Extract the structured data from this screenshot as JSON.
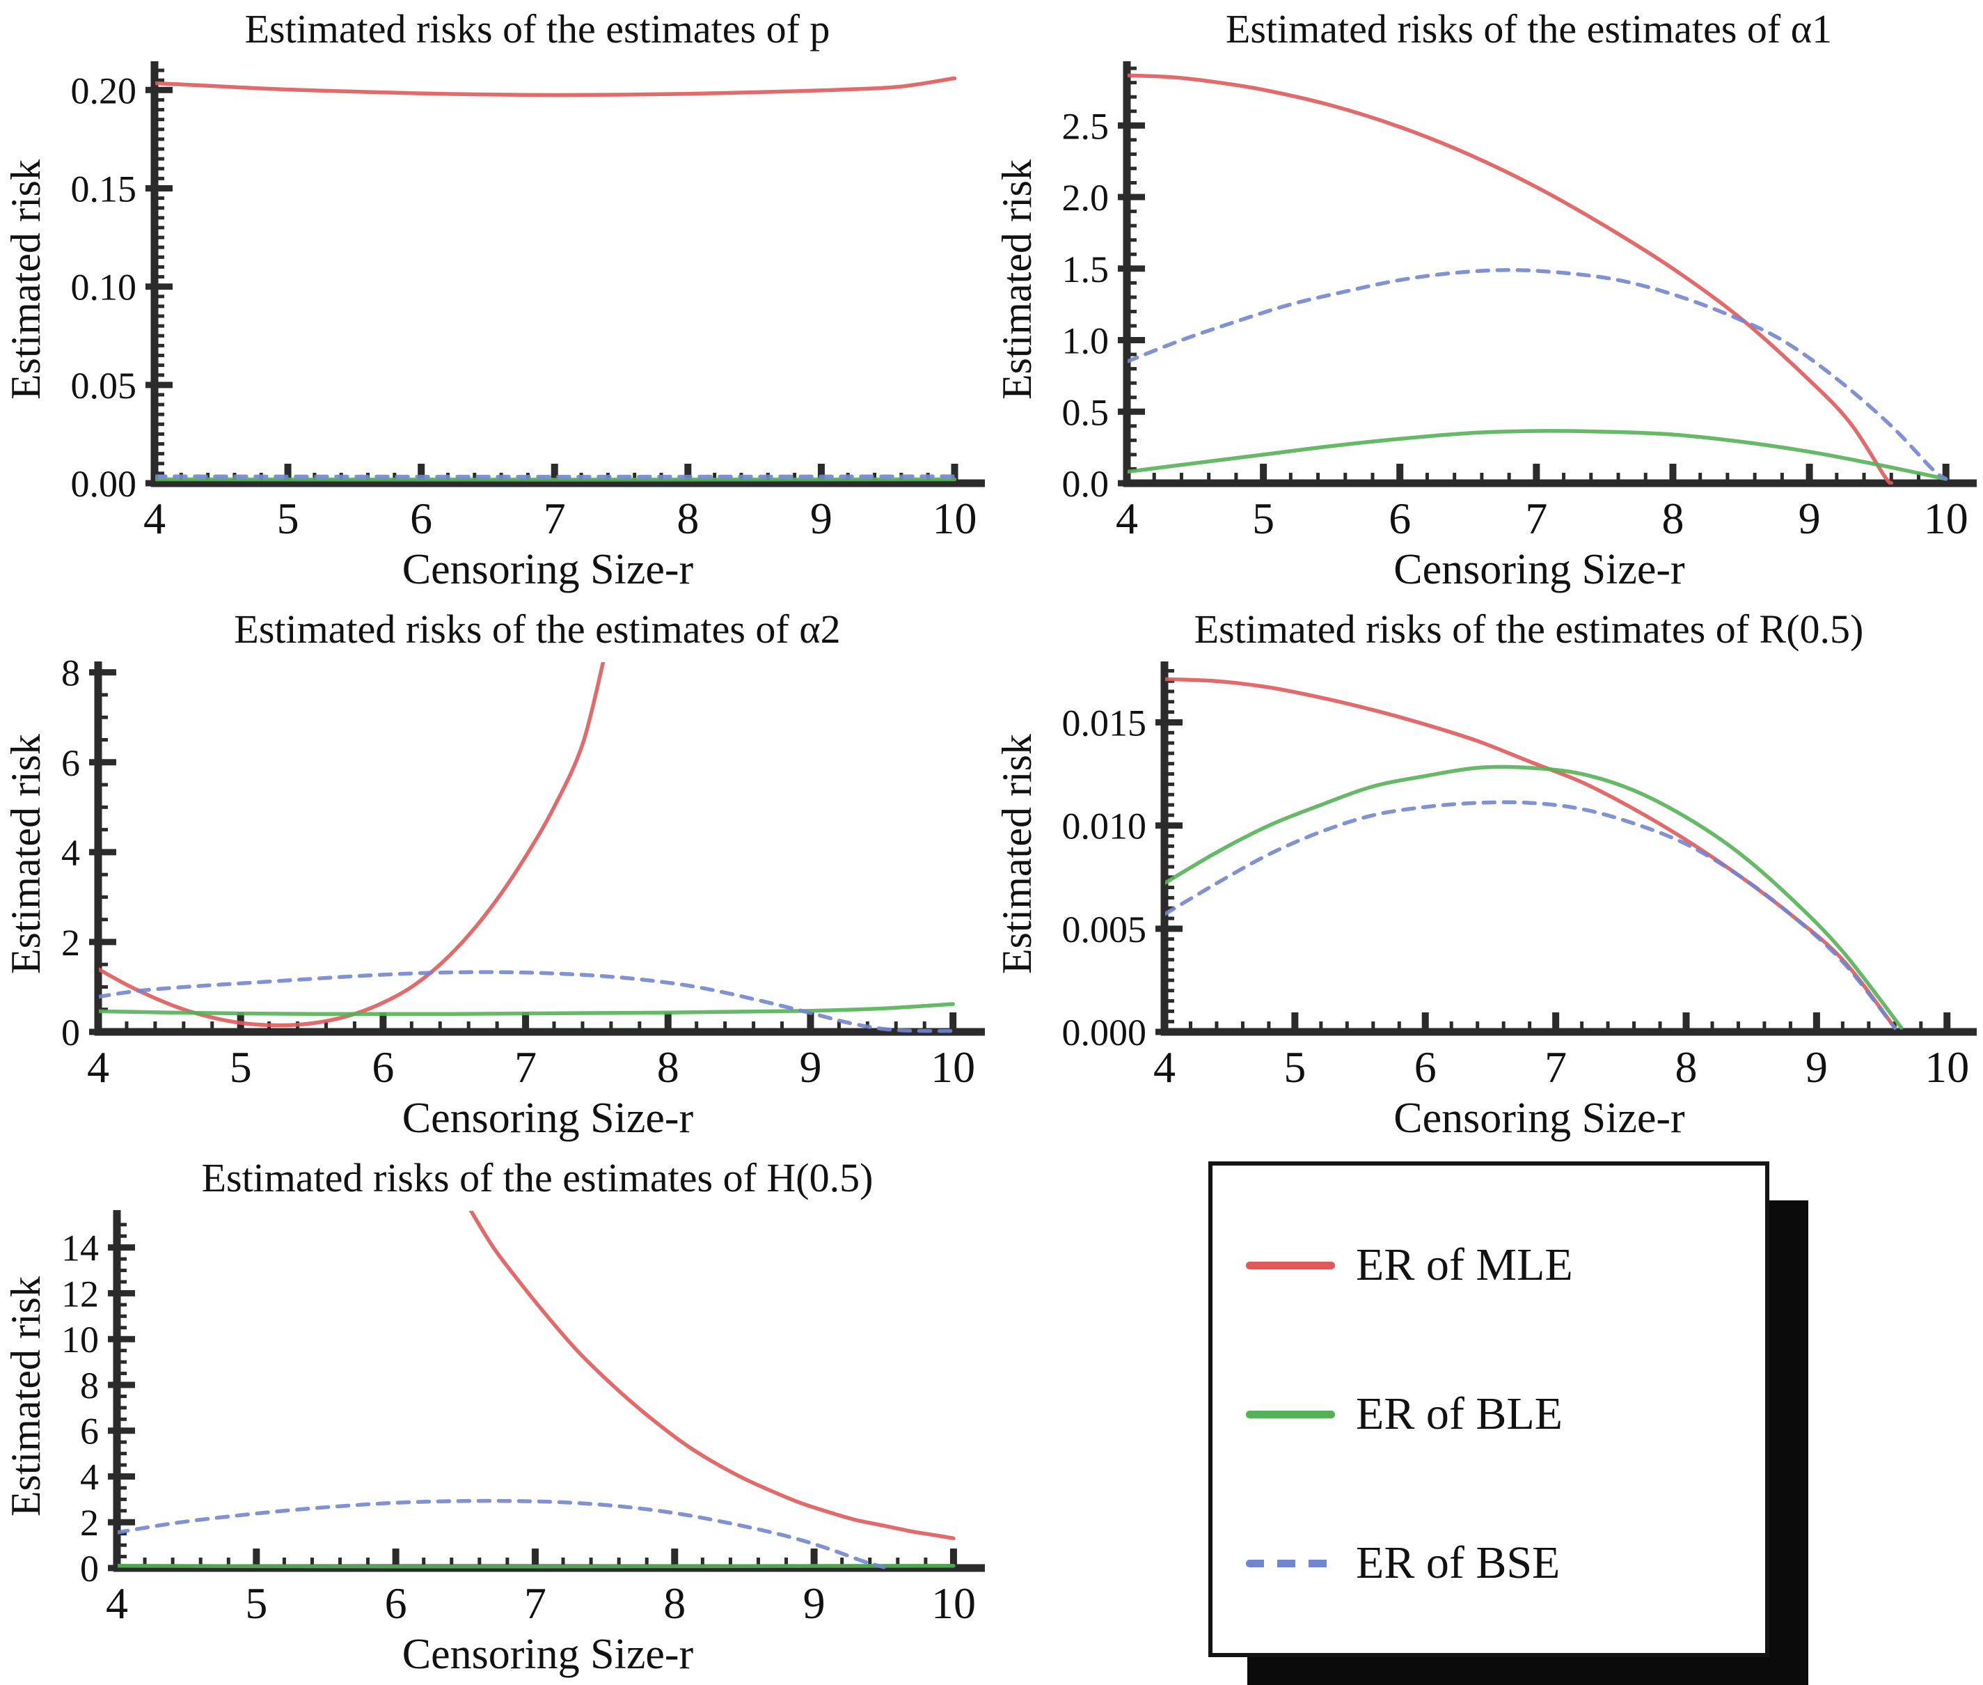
{
  "figure": {
    "background": "#ffffff"
  },
  "colors": {
    "mle": "#e05a5a",
    "ble": "#55b155",
    "bse": "#7285cf",
    "axis": "#2b2b2b",
    "text": "#111111",
    "legend_border": "#141414",
    "legend_shadow": "#0b0b0b"
  },
  "legend": {
    "items": [
      {
        "label": "ER of MLE",
        "series": "mle",
        "style": "solid"
      },
      {
        "label": "ER of BLE",
        "series": "ble",
        "style": "solid"
      },
      {
        "label": "ER of BSE",
        "series": "bse",
        "style": "dashed"
      }
    ]
  },
  "chart_data": [
    {
      "type": "line",
      "title": "Estimated risks of the estimates of p",
      "xlabel": "Censoring Size-r",
      "ylabel": "Estimated risk",
      "xlim": [
        4,
        10.18
      ],
      "ylim": [
        0,
        0.2125
      ],
      "xticks": [
        4,
        5,
        6,
        7,
        8,
        9,
        10
      ],
      "xminor": 0.2,
      "yticks": [
        0,
        0.05,
        0.1,
        0.15,
        0.2
      ],
      "ytick_labels": [
        "0.00",
        "0.05",
        "0.10",
        "0.15",
        "0.20"
      ],
      "yminor": 0.005,
      "series": [
        {
          "name": "ER of MLE",
          "color": "mle",
          "style": "solid",
          "points": [
            [
              4,
              0.2035
            ],
            [
              4.4,
              0.2022
            ],
            [
              4.8,
              0.2008
            ],
            [
              5.2,
              0.1998
            ],
            [
              5.6,
              0.199
            ],
            [
              6,
              0.1983
            ],
            [
              6.4,
              0.1978
            ],
            [
              6.8,
              0.1975
            ],
            [
              7.2,
              0.1975
            ],
            [
              7.6,
              0.1977
            ],
            [
              8,
              0.1981
            ],
            [
              8.4,
              0.1987
            ],
            [
              8.8,
              0.1994
            ],
            [
              9.2,
              0.2003
            ],
            [
              9.6,
              0.2018
            ],
            [
              10,
              0.206
            ]
          ]
        },
        {
          "name": "ER of BLE",
          "color": "ble",
          "style": "solid",
          "points": [
            [
              4,
              0.002
            ],
            [
              7,
              0.0018
            ],
            [
              10,
              0.002
            ]
          ]
        },
        {
          "name": "ER of BSE",
          "color": "bse",
          "style": "dashed",
          "points": [
            [
              4,
              0.0035
            ],
            [
              7,
              0.0033
            ],
            [
              10,
              0.0035
            ]
          ]
        }
      ]
    },
    {
      "type": "line",
      "title": "Estimated risks of the estimates of α1",
      "xlabel": "Censoring Size-r",
      "ylabel": "Estimated risk",
      "xlim": [
        4,
        10.18
      ],
      "ylim": [
        0,
        2.92
      ],
      "xticks": [
        4,
        5,
        6,
        7,
        8,
        9,
        10
      ],
      "xminor": 0.2,
      "yticks": [
        0,
        0.5,
        1.0,
        1.5,
        2.0,
        2.5
      ],
      "ytick_labels": [
        "0.0",
        "0.5",
        "1.0",
        "1.5",
        "2.0",
        "2.5"
      ],
      "yminor": 0.1,
      "series": [
        {
          "name": "ER of MLE",
          "color": "mle",
          "style": "solid",
          "points": [
            [
              4,
              2.85
            ],
            [
              4.3,
              2.84
            ],
            [
              4.6,
              2.81
            ],
            [
              5,
              2.75
            ],
            [
              5.5,
              2.64
            ],
            [
              6,
              2.49
            ],
            [
              6.5,
              2.3
            ],
            [
              7,
              2.07
            ],
            [
              7.5,
              1.8
            ],
            [
              8,
              1.5
            ],
            [
              8.5,
              1.15
            ],
            [
              9,
              0.72
            ],
            [
              9.3,
              0.42
            ],
            [
              9.55,
              0.05
            ],
            [
              9.6,
              0
            ]
          ]
        },
        {
          "name": "ER of BLE",
          "color": "ble",
          "style": "solid",
          "points": [
            [
              4,
              0.08
            ],
            [
              4.5,
              0.14
            ],
            [
              5,
              0.2
            ],
            [
              5.5,
              0.26
            ],
            [
              6,
              0.31
            ],
            [
              6.5,
              0.35
            ],
            [
              7,
              0.365
            ],
            [
              7.5,
              0.36
            ],
            [
              8,
              0.34
            ],
            [
              8.5,
              0.29
            ],
            [
              9,
              0.22
            ],
            [
              9.5,
              0.13
            ],
            [
              10,
              0.03
            ]
          ]
        },
        {
          "name": "ER of BSE",
          "color": "bse",
          "style": "dashed",
          "points": [
            [
              4,
              0.85
            ],
            [
              4.4,
              1.0
            ],
            [
              4.8,
              1.13
            ],
            [
              5.2,
              1.25
            ],
            [
              5.6,
              1.34
            ],
            [
              6,
              1.42
            ],
            [
              6.4,
              1.47
            ],
            [
              6.8,
              1.49
            ],
            [
              7.2,
              1.47
            ],
            [
              7.6,
              1.42
            ],
            [
              8,
              1.32
            ],
            [
              8.4,
              1.18
            ],
            [
              8.8,
              1.0
            ],
            [
              9.2,
              0.73
            ],
            [
              9.6,
              0.4
            ],
            [
              9.9,
              0.1
            ],
            [
              10,
              0.03
            ]
          ]
        }
      ]
    },
    {
      "type": "line",
      "title": "Estimated risks of the estimates of α2",
      "xlabel": "Censoring Size-r",
      "ylabel": "Estimated risk",
      "xlim": [
        4,
        10.18
      ],
      "ylim": [
        0,
        8.15
      ],
      "xticks": [
        4,
        5,
        6,
        7,
        8,
        9,
        10
      ],
      "xminor": 0.2,
      "yticks": [
        0,
        2,
        4,
        6,
        8
      ],
      "ytick_labels": [
        "0",
        "2",
        "4",
        "6",
        "8"
      ],
      "yminor": 0.5,
      "series": [
        {
          "name": "ER of MLE",
          "color": "mle",
          "style": "solid",
          "points": [
            [
              4,
              1.4
            ],
            [
              4.2,
              1.05
            ],
            [
              4.4,
              0.75
            ],
            [
              4.6,
              0.5
            ],
            [
              4.8,
              0.32
            ],
            [
              5,
              0.2
            ],
            [
              5.2,
              0.15
            ],
            [
              5.4,
              0.16
            ],
            [
              5.6,
              0.24
            ],
            [
              5.8,
              0.4
            ],
            [
              6,
              0.65
            ],
            [
              6.2,
              1.0
            ],
            [
              6.4,
              1.5
            ],
            [
              6.6,
              2.15
            ],
            [
              6.8,
              2.95
            ],
            [
              7,
              3.9
            ],
            [
              7.2,
              5.0
            ],
            [
              7.4,
              6.4
            ],
            [
              7.55,
              8.3
            ]
          ]
        },
        {
          "name": "ER of BLE",
          "color": "ble",
          "style": "solid",
          "points": [
            [
              4,
              0.46
            ],
            [
              4.5,
              0.43
            ],
            [
              5,
              0.41
            ],
            [
              5.5,
              0.4
            ],
            [
              6,
              0.4
            ],
            [
              6.5,
              0.4
            ],
            [
              7,
              0.41
            ],
            [
              7.5,
              0.42
            ],
            [
              8,
              0.43
            ],
            [
              8.5,
              0.45
            ],
            [
              9,
              0.47
            ],
            [
              9.5,
              0.52
            ],
            [
              10,
              0.62
            ]
          ]
        },
        {
          "name": "ER of BSE",
          "color": "bse",
          "style": "dashed",
          "points": [
            [
              4,
              0.78
            ],
            [
              4.2,
              0.88
            ],
            [
              4.4,
              0.95
            ],
            [
              4.7,
              1.02
            ],
            [
              5,
              1.08
            ],
            [
              5.4,
              1.16
            ],
            [
              5.8,
              1.24
            ],
            [
              6.2,
              1.3
            ],
            [
              6.6,
              1.33
            ],
            [
              7,
              1.32
            ],
            [
              7.4,
              1.27
            ],
            [
              7.8,
              1.17
            ],
            [
              8.2,
              1.0
            ],
            [
              8.6,
              0.73
            ],
            [
              9,
              0.42
            ],
            [
              9.3,
              0.18
            ],
            [
              9.6,
              0.04
            ],
            [
              10,
              0.02
            ]
          ]
        }
      ]
    },
    {
      "type": "line",
      "title": "Estimated risks of the estimates of R(0.5)",
      "xlabel": "Censoring Size-r",
      "ylabel": "Estimated risk",
      "xlim": [
        4,
        10.18
      ],
      "ylim": [
        0,
        0.01775
      ],
      "xticks": [
        4,
        5,
        6,
        7,
        8,
        9,
        10
      ],
      "xminor": 0.2,
      "yticks": [
        0,
        0.005,
        0.01,
        0.015
      ],
      "ytick_labels": [
        "0.000",
        "0.005",
        "0.010",
        "0.015"
      ],
      "yminor": 0.0005,
      "series": [
        {
          "name": "ER of MLE",
          "color": "mle",
          "style": "solid",
          "points": [
            [
              4,
              0.0171
            ],
            [
              4.4,
              0.017
            ],
            [
              4.8,
              0.0167
            ],
            [
              5.2,
              0.0162
            ],
            [
              5.6,
              0.0156
            ],
            [
              6,
              0.0149
            ],
            [
              6.4,
              0.0141
            ],
            [
              6.8,
              0.0131
            ],
            [
              7.2,
              0.0121
            ],
            [
              7.6,
              0.0108
            ],
            [
              8,
              0.0093
            ],
            [
              8.4,
              0.0076
            ],
            [
              8.8,
              0.0057
            ],
            [
              9.2,
              0.0035
            ],
            [
              9.6,
              0.0002
            ]
          ]
        },
        {
          "name": "ER of BLE",
          "color": "ble",
          "style": "solid",
          "points": [
            [
              4,
              0.0072
            ],
            [
              4.4,
              0.0087
            ],
            [
              4.8,
              0.01
            ],
            [
              5.2,
              0.011
            ],
            [
              5.6,
              0.0119
            ],
            [
              6,
              0.0124
            ],
            [
              6.4,
              0.0128
            ],
            [
              6.8,
              0.0128
            ],
            [
              7.2,
              0.0125
            ],
            [
              7.6,
              0.0117
            ],
            [
              8,
              0.0104
            ],
            [
              8.4,
              0.0087
            ],
            [
              8.8,
              0.0065
            ],
            [
              9.2,
              0.0039
            ],
            [
              9.65,
              0.0002
            ]
          ]
        },
        {
          "name": "ER of BSE",
          "color": "bse",
          "style": "dashed",
          "points": [
            [
              4,
              0.0057
            ],
            [
              4.4,
              0.0072
            ],
            [
              4.8,
              0.0086
            ],
            [
              5.2,
              0.0097
            ],
            [
              5.6,
              0.0105
            ],
            [
              6,
              0.0109
            ],
            [
              6.4,
              0.0111
            ],
            [
              6.8,
              0.0111
            ],
            [
              7.2,
              0.0108
            ],
            [
              7.6,
              0.0101
            ],
            [
              8,
              0.0091
            ],
            [
              8.4,
              0.0076
            ],
            [
              8.8,
              0.0057
            ],
            [
              9.2,
              0.0034
            ],
            [
              9.6,
              0.0002
            ]
          ]
        }
      ]
    },
    {
      "type": "line",
      "title": "Estimated risks of the estimates of H(0.5)",
      "xlabel": "Censoring Size-r",
      "ylabel": "Estimated risk",
      "xlim": [
        4,
        10.18
      ],
      "ylim": [
        0,
        15.45
      ],
      "xticks": [
        4,
        5,
        6,
        7,
        8,
        9,
        10
      ],
      "xminor": 0.2,
      "yticks": [
        0,
        2,
        4,
        6,
        8,
        10,
        12,
        14
      ],
      "ytick_labels": [
        "0",
        "2",
        "4",
        "6",
        "8",
        "10",
        "12",
        "14"
      ],
      "yminor": 0.5,
      "series": [
        {
          "name": "ER of MLE",
          "color": "mle",
          "style": "solid",
          "points": [
            [
              6.52,
              15.8
            ],
            [
              6.7,
              14.0
            ],
            [
              6.9,
              12.4
            ],
            [
              7.1,
              10.9
            ],
            [
              7.3,
              9.5
            ],
            [
              7.5,
              8.3
            ],
            [
              7.7,
              7.2
            ],
            [
              7.9,
              6.2
            ],
            [
              8.1,
              5.3
            ],
            [
              8.3,
              4.55
            ],
            [
              8.5,
              3.9
            ],
            [
              8.7,
              3.35
            ],
            [
              8.9,
              2.85
            ],
            [
              9.1,
              2.45
            ],
            [
              9.3,
              2.1
            ],
            [
              9.5,
              1.85
            ],
            [
              9.7,
              1.6
            ],
            [
              9.85,
              1.45
            ],
            [
              10,
              1.3
            ]
          ]
        },
        {
          "name": "ER of BLE",
          "color": "ble",
          "style": "solid",
          "points": [
            [
              4,
              0.1
            ],
            [
              5,
              0.08
            ],
            [
              6,
              0.07
            ],
            [
              7,
              0.07
            ],
            [
              8,
              0.08
            ],
            [
              9,
              0.09
            ],
            [
              10,
              0.1
            ]
          ]
        },
        {
          "name": "ER of BSE",
          "color": "bse",
          "style": "dashed",
          "points": [
            [
              4,
              1.55
            ],
            [
              4.4,
              1.95
            ],
            [
              4.8,
              2.25
            ],
            [
              5.2,
              2.5
            ],
            [
              5.6,
              2.7
            ],
            [
              6,
              2.85
            ],
            [
              6.4,
              2.92
            ],
            [
              6.8,
              2.93
            ],
            [
              7.2,
              2.87
            ],
            [
              7.6,
              2.7
            ],
            [
              8,
              2.4
            ],
            [
              8.4,
              1.95
            ],
            [
              8.8,
              1.4
            ],
            [
              9.1,
              0.85
            ],
            [
              9.35,
              0.3
            ],
            [
              9.5,
              0.04
            ]
          ]
        }
      ]
    }
  ]
}
